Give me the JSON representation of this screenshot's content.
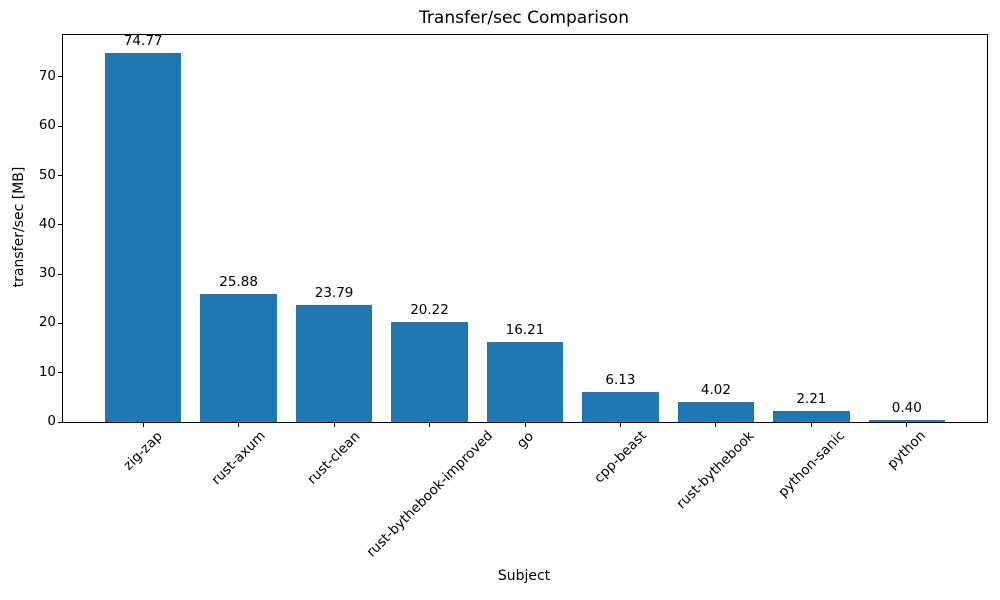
{
  "chart_data": {
    "type": "bar",
    "title": "Transfer/sec Comparison",
    "xlabel": "Subject",
    "ylabel": "transfer/sec [MB]",
    "categories": [
      "zig-zap",
      "rust-axum",
      "rust-clean",
      "rust-bythebook-improved",
      "go",
      "cpp-beast",
      "rust-bythebook",
      "python-sanic",
      "python"
    ],
    "values": [
      74.77,
      25.88,
      23.79,
      20.22,
      16.21,
      6.13,
      4.02,
      2.21,
      0.4
    ],
    "bar_labels": [
      "74.77",
      "25.88",
      "23.79",
      "20.22",
      "16.21",
      "6.13",
      "4.02",
      "2.21",
      "0.40"
    ],
    "yticks": [
      0,
      10,
      20,
      30,
      40,
      50,
      60,
      70
    ],
    "ylim": [
      0,
      78.5
    ],
    "bar_color": "#1f77b4",
    "grid": false,
    "legend_position": "none",
    "x_tick_rotation_deg": 45
  }
}
